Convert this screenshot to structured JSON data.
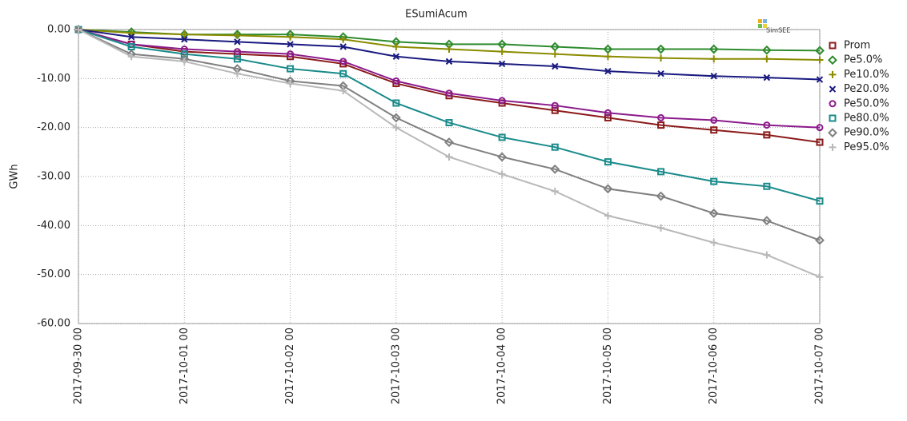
{
  "chart_data": {
    "type": "line",
    "title": "ESumiAcum",
    "y_label": "GWh",
    "logo": "SimSEE",
    "x": [
      "2017-09-30 00",
      "2017-09-30 12",
      "2017-10-01 00",
      "2017-10-01 12",
      "2017-10-02 00",
      "2017-10-02 12",
      "2017-10-03 00",
      "2017-10-03 12",
      "2017-10-04 00",
      "2017-10-04 12",
      "2017-10-05 00",
      "2017-10-05 12",
      "2017-10-06 00",
      "2017-10-06 12",
      "2017-10-07 00"
    ],
    "xlim": [
      "2017-09-30 00",
      "2017-10-07 00"
    ],
    "xticks": [
      "2017-09-30 00",
      "2017-10-01 00",
      "2017-10-02 00",
      "2017-10-03 00",
      "2017-10-04 00",
      "2017-10-05 00",
      "2017-10-06 00",
      "2017-10-07 00"
    ],
    "ylim": [
      -60,
      0
    ],
    "yticks": [
      {
        "value": 0,
        "label": "0.00"
      },
      {
        "value": -10,
        "label": "-10.00"
      },
      {
        "value": -20,
        "label": "-20.00"
      },
      {
        "value": -30,
        "label": "-30.00"
      },
      {
        "value": -40,
        "label": "-40.00"
      },
      {
        "value": -50,
        "label": "-50.00"
      },
      {
        "value": -60,
        "label": "-60.00"
      }
    ],
    "grid": true,
    "legend": "right",
    "series": [
      {
        "name": "Prom",
        "color": "#8b1a1a",
        "marker": "square",
        "values": [
          0,
          -3,
          -4.5,
          -5,
          -5.5,
          -7,
          -11,
          -13.5,
          -15,
          -16.5,
          -18,
          -19.5,
          -20.5,
          -21.5,
          -23
        ]
      },
      {
        "name": "Pe5.0%",
        "color": "#2e8b2e",
        "marker": "diamond",
        "values": [
          0,
          -0.5,
          -1,
          -1,
          -1,
          -1.5,
          -2.5,
          -3,
          -3,
          -3.5,
          -4,
          -4,
          -4,
          -4.2,
          -4.3
        ]
      },
      {
        "name": "Pe10.0%",
        "color": "#8b8b00",
        "marker": "plus",
        "values": [
          0,
          -0.7,
          -1,
          -1.2,
          -1.5,
          -2,
          -3.5,
          -4,
          -4.5,
          -5,
          -5.5,
          -5.8,
          -6,
          -6,
          -6.2
        ]
      },
      {
        "name": "Pe20.0%",
        "color": "#1a1a80",
        "marker": "cross",
        "values": [
          0,
          -1.5,
          -2,
          -2.5,
          -3,
          -3.5,
          -5.5,
          -6.5,
          -7,
          -7.5,
          -8.5,
          -9,
          -9.5,
          -9.8,
          -10.2
        ]
      },
      {
        "name": "Pe50.0%",
        "color": "#8b1a8b",
        "marker": "circle",
        "values": [
          0,
          -3,
          -4,
          -4.5,
          -5,
          -6.5,
          -10.5,
          -13,
          -14.5,
          -15.5,
          -17,
          -18,
          -18.5,
          -19.5,
          -20
        ]
      },
      {
        "name": "Pe80.0%",
        "color": "#1a8b8b",
        "marker": "square",
        "values": [
          0,
          -3.5,
          -5,
          -6,
          -8,
          -9,
          -15,
          -19,
          -22,
          -24,
          -27,
          -29,
          -31,
          -32,
          -35
        ]
      },
      {
        "name": "Pe90.0%",
        "color": "#808080",
        "marker": "diamond",
        "values": [
          0,
          -5,
          -6,
          -8,
          -10.5,
          -11.5,
          -18,
          -23,
          -26,
          -28.5,
          -32.5,
          -34,
          -37.5,
          -39,
          -43
        ]
      },
      {
        "name": "Pe95.0%",
        "color": "#b8b8b8",
        "marker": "plus",
        "values": [
          0,
          -5.5,
          -6.5,
          -9,
          -11,
          -12.5,
          -20,
          -26,
          -29.5,
          -33,
          -38,
          -40.5,
          -43.5,
          -46,
          -50.5
        ]
      }
    ]
  }
}
